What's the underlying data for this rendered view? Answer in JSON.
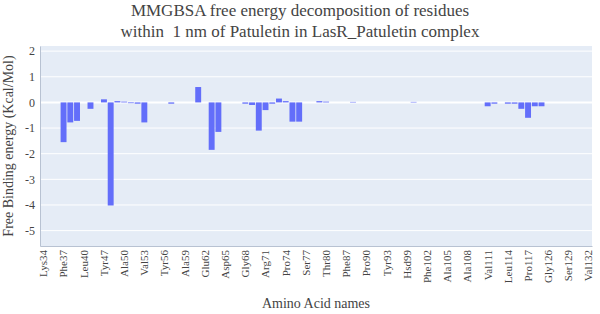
{
  "chart_data": {
    "type": "bar",
    "title": "MMGBSA free energy decomposition of residues\nwithin  1 nm of Patuletin in LasR_Patuletin complex",
    "x_label": "Amino Acid names",
    "y_label": "Free Binding energy (Kcal/Mol)",
    "categories": [
      "Lys34",
      null,
      null,
      "Phe37",
      null,
      null,
      "Leu40",
      null,
      null,
      "Tyr47",
      null,
      null,
      "Ala50",
      null,
      null,
      "Val53",
      null,
      null,
      "Tyr56",
      null,
      null,
      "Ala59",
      null,
      null,
      "Glu62",
      null,
      null,
      "Asp65",
      null,
      null,
      "Gly68",
      null,
      null,
      "Arg71",
      null,
      null,
      "Pro74",
      null,
      null,
      "Ser77",
      null,
      null,
      "Thr80",
      null,
      null,
      "Phe87",
      null,
      null,
      "Pro90",
      null,
      null,
      "Tyr93",
      null,
      null,
      "Hsd99",
      null,
      null,
      "Phe102",
      null,
      null,
      "Ala105",
      null,
      null,
      "Ala108",
      null,
      null,
      "Val111",
      null,
      null,
      "Leu114",
      null,
      null,
      "Pro117",
      null,
      null,
      "Gly126",
      null,
      null,
      "Ser129",
      null,
      null,
      "Val132"
    ],
    "values": [
      0,
      0,
      0,
      -1.55,
      -0.78,
      -0.72,
      0,
      -0.25,
      0,
      0.12,
      -4.02,
      0.05,
      0.03,
      -0.03,
      -0.05,
      -0.78,
      0,
      0,
      0,
      -0.05,
      0,
      0,
      0,
      0.6,
      0,
      -1.85,
      -1.15,
      0,
      0,
      0,
      -0.05,
      -0.1,
      -1.1,
      -0.3,
      -0.05,
      0.15,
      0.05,
      -0.75,
      -0.75,
      0,
      0,
      0.05,
      0.03,
      0,
      0,
      0,
      0.02,
      0,
      0,
      0,
      0,
      0,
      0,
      0,
      0,
      0.02,
      0,
      0,
      0,
      0,
      0,
      0,
      0,
      0,
      0,
      0,
      -0.15,
      -0.05,
      0,
      -0.05,
      -0.05,
      -0.25,
      -0.6,
      -0.15,
      -0.15,
      0,
      0,
      0,
      0,
      0,
      0,
      0
    ],
    "color": "#636efa",
    "ylim": [
      -5.6,
      2.2
    ],
    "yticks": [
      -5,
      -4,
      -3,
      -2,
      -1,
      0,
      1,
      2
    ],
    "grid": true
  }
}
